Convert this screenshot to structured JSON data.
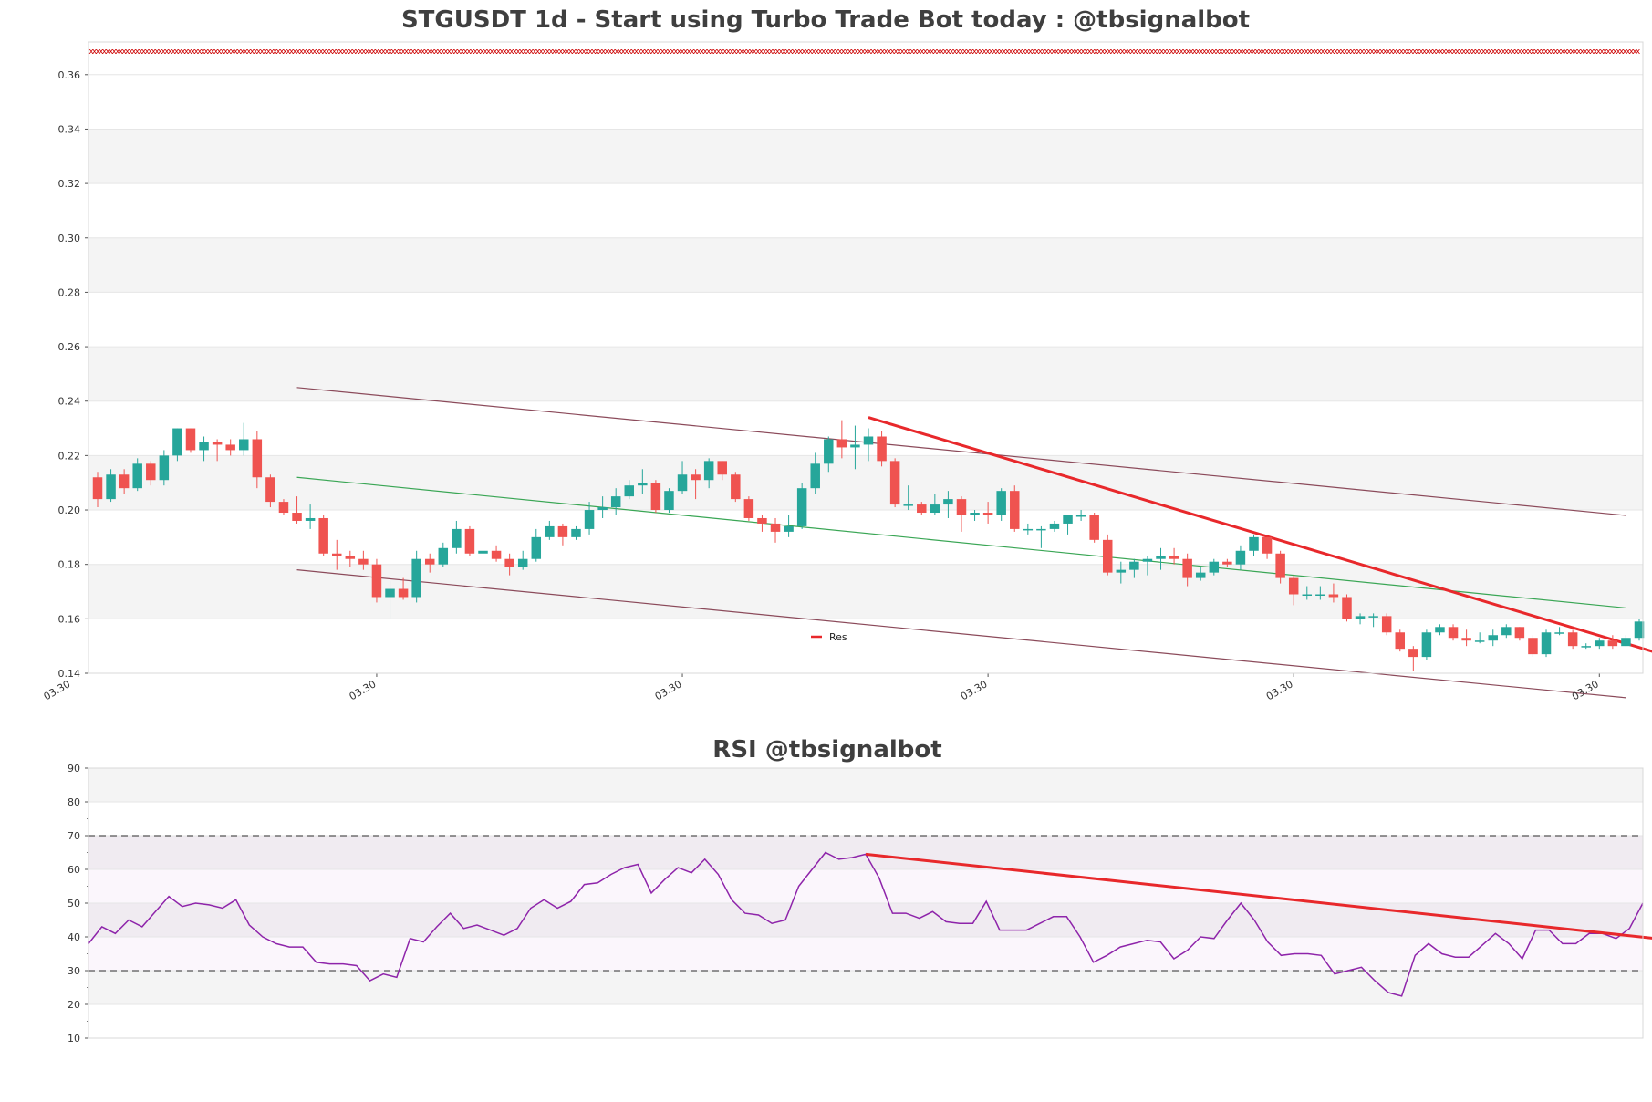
{
  "chart_data": [
    {
      "type": "candlestick",
      "title": "STGUSDT 1d - Start using Turbo Trade Bot today : @tbsignalbot",
      "ylim": [
        0.14,
        0.372
      ],
      "yticks": [
        0.14,
        0.16,
        0.18,
        0.2,
        0.22,
        0.24,
        0.26,
        0.28,
        0.3,
        0.32,
        0.34,
        0.36
      ],
      "x_tick_labels": [
        "03.30",
        "03.30",
        "03.30",
        "03.30",
        "03.30",
        "03.30"
      ],
      "x_tick_index": [
        -2,
        21,
        44,
        67,
        90,
        113
      ],
      "grid": "horizontal-bands",
      "colors": {
        "up": "#26a69a",
        "down": "#ef5350",
        "channel": "#8b4a5a",
        "mid": "#3aa655",
        "res": "#e8282b",
        "marker": "#cc0000",
        "band": "#f4f4f4"
      },
      "candles": [
        [
          0.212,
          0.204,
          0.214,
          0.201
        ],
        [
          0.204,
          0.213,
          0.215,
          0.203
        ],
        [
          0.213,
          0.208,
          0.215,
          0.206
        ],
        [
          0.208,
          0.217,
          0.219,
          0.207
        ],
        [
          0.217,
          0.211,
          0.218,
          0.209
        ],
        [
          0.211,
          0.22,
          0.222,
          0.209
        ],
        [
          0.22,
          0.23,
          0.23,
          0.218
        ],
        [
          0.23,
          0.222,
          0.23,
          0.221
        ],
        [
          0.222,
          0.225,
          0.227,
          0.218
        ],
        [
          0.225,
          0.224,
          0.226,
          0.218
        ],
        [
          0.224,
          0.222,
          0.226,
          0.22
        ],
        [
          0.222,
          0.226,
          0.232,
          0.22
        ],
        [
          0.226,
          0.212,
          0.229,
          0.208
        ],
        [
          0.212,
          0.203,
          0.213,
          0.201
        ],
        [
          0.203,
          0.199,
          0.204,
          0.198
        ],
        [
          0.199,
          0.196,
          0.205,
          0.195
        ],
        [
          0.196,
          0.197,
          0.202,
          0.193
        ],
        [
          0.197,
          0.184,
          0.198,
          0.183
        ],
        [
          0.184,
          0.183,
          0.189,
          0.178
        ],
        [
          0.183,
          0.182,
          0.185,
          0.179
        ],
        [
          0.182,
          0.18,
          0.185,
          0.178
        ],
        [
          0.18,
          0.168,
          0.182,
          0.166
        ],
        [
          0.168,
          0.171,
          0.174,
          0.16
        ],
        [
          0.171,
          0.168,
          0.175,
          0.167
        ],
        [
          0.168,
          0.182,
          0.185,
          0.166
        ],
        [
          0.182,
          0.18,
          0.184,
          0.177
        ],
        [
          0.18,
          0.186,
          0.188,
          0.179
        ],
        [
          0.186,
          0.193,
          0.196,
          0.184
        ],
        [
          0.193,
          0.184,
          0.194,
          0.183
        ],
        [
          0.184,
          0.185,
          0.187,
          0.181
        ],
        [
          0.185,
          0.182,
          0.187,
          0.181
        ],
        [
          0.182,
          0.179,
          0.184,
          0.176
        ],
        [
          0.179,
          0.182,
          0.185,
          0.178
        ],
        [
          0.182,
          0.19,
          0.193,
          0.181
        ],
        [
          0.19,
          0.194,
          0.196,
          0.189
        ],
        [
          0.194,
          0.19,
          0.195,
          0.187
        ],
        [
          0.19,
          0.193,
          0.194,
          0.189
        ],
        [
          0.193,
          0.2,
          0.203,
          0.191
        ],
        [
          0.2,
          0.201,
          0.205,
          0.197
        ],
        [
          0.201,
          0.205,
          0.208,
          0.198
        ],
        [
          0.205,
          0.209,
          0.211,
          0.204
        ],
        [
          0.209,
          0.21,
          0.215,
          0.206
        ],
        [
          0.21,
          0.2,
          0.211,
          0.199
        ],
        [
          0.2,
          0.207,
          0.208,
          0.199
        ],
        [
          0.207,
          0.213,
          0.218,
          0.206
        ],
        [
          0.213,
          0.211,
          0.215,
          0.204
        ],
        [
          0.211,
          0.218,
          0.219,
          0.208
        ],
        [
          0.218,
          0.213,
          0.218,
          0.211
        ],
        [
          0.213,
          0.204,
          0.214,
          0.203
        ],
        [
          0.204,
          0.197,
          0.205,
          0.196
        ],
        [
          0.197,
          0.195,
          0.198,
          0.192
        ],
        [
          0.195,
          0.192,
          0.197,
          0.188
        ],
        [
          0.192,
          0.194,
          0.198,
          0.19
        ],
        [
          0.194,
          0.208,
          0.21,
          0.193
        ],
        [
          0.208,
          0.217,
          0.221,
          0.206
        ],
        [
          0.217,
          0.226,
          0.227,
          0.214
        ],
        [
          0.226,
          0.223,
          0.233,
          0.219
        ],
        [
          0.223,
          0.224,
          0.231,
          0.215
        ],
        [
          0.224,
          0.227,
          0.23,
          0.218
        ],
        [
          0.227,
          0.218,
          0.229,
          0.216
        ],
        [
          0.218,
          0.202,
          0.219,
          0.201
        ],
        [
          0.202,
          0.202,
          0.209,
          0.2
        ],
        [
          0.202,
          0.199,
          0.203,
          0.198
        ],
        [
          0.199,
          0.202,
          0.206,
          0.198
        ],
        [
          0.202,
          0.204,
          0.207,
          0.197
        ],
        [
          0.204,
          0.198,
          0.205,
          0.192
        ],
        [
          0.198,
          0.199,
          0.2,
          0.196
        ],
        [
          0.199,
          0.198,
          0.203,
          0.195
        ],
        [
          0.198,
          0.207,
          0.208,
          0.196
        ],
        [
          0.207,
          0.193,
          0.209,
          0.192
        ],
        [
          0.193,
          0.193,
          0.195,
          0.191
        ],
        [
          0.193,
          0.193,
          0.194,
          0.186
        ],
        [
          0.193,
          0.195,
          0.196,
          0.192
        ],
        [
          0.195,
          0.198,
          0.198,
          0.191
        ],
        [
          0.198,
          0.198,
          0.2,
          0.196
        ],
        [
          0.198,
          0.189,
          0.199,
          0.188
        ],
        [
          0.189,
          0.177,
          0.191,
          0.176
        ],
        [
          0.177,
          0.178,
          0.181,
          0.173
        ],
        [
          0.178,
          0.181,
          0.182,
          0.175
        ],
        [
          0.181,
          0.182,
          0.183,
          0.176
        ],
        [
          0.182,
          0.183,
          0.186,
          0.178
        ],
        [
          0.183,
          0.182,
          0.186,
          0.18
        ],
        [
          0.182,
          0.175,
          0.184,
          0.172
        ],
        [
          0.175,
          0.177,
          0.179,
          0.174
        ],
        [
          0.177,
          0.181,
          0.182,
          0.176
        ],
        [
          0.181,
          0.18,
          0.182,
          0.179
        ],
        [
          0.18,
          0.185,
          0.187,
          0.178
        ],
        [
          0.185,
          0.19,
          0.191,
          0.183
        ],
        [
          0.19,
          0.184,
          0.19,
          0.182
        ],
        [
          0.184,
          0.175,
          0.185,
          0.173
        ],
        [
          0.175,
          0.169,
          0.176,
          0.165
        ],
        [
          0.169,
          0.169,
          0.172,
          0.167
        ],
        [
          0.169,
          0.169,
          0.172,
          0.167
        ],
        [
          0.169,
          0.168,
          0.173,
          0.166
        ],
        [
          0.168,
          0.16,
          0.169,
          0.159
        ],
        [
          0.16,
          0.161,
          0.162,
          0.158
        ],
        [
          0.161,
          0.161,
          0.162,
          0.157
        ],
        [
          0.161,
          0.155,
          0.162,
          0.154
        ],
        [
          0.155,
          0.149,
          0.156,
          0.148
        ],
        [
          0.149,
          0.146,
          0.15,
          0.141
        ],
        [
          0.146,
          0.155,
          0.156,
          0.145
        ],
        [
          0.155,
          0.157,
          0.158,
          0.154
        ],
        [
          0.157,
          0.153,
          0.158,
          0.152
        ],
        [
          0.153,
          0.152,
          0.156,
          0.15
        ],
        [
          0.152,
          0.152,
          0.155,
          0.151
        ],
        [
          0.152,
          0.154,
          0.156,
          0.15
        ],
        [
          0.154,
          0.157,
          0.158,
          0.153
        ],
        [
          0.157,
          0.153,
          0.157,
          0.152
        ],
        [
          0.153,
          0.147,
          0.154,
          0.146
        ],
        [
          0.147,
          0.155,
          0.156,
          0.146
        ],
        [
          0.155,
          0.155,
          0.157,
          0.154
        ],
        [
          0.155,
          0.15,
          0.156,
          0.149
        ],
        [
          0.15,
          0.15,
          0.151,
          0.149
        ],
        [
          0.15,
          0.152,
          0.153,
          0.149
        ],
        [
          0.152,
          0.15,
          0.154,
          0.149
        ],
        [
          0.15,
          0.153,
          0.154,
          0.15
        ],
        [
          0.153,
          0.159,
          0.16,
          0.152
        ]
      ],
      "lines": [
        {
          "name": "upper-channel",
          "from": [
            15,
            0.245
          ],
          "to": [
            115,
            0.198
          ]
        },
        {
          "name": "lower-channel",
          "from": [
            15,
            0.178
          ],
          "to": [
            115,
            0.131
          ]
        },
        {
          "name": "mid-channel",
          "from": [
            15,
            0.212
          ],
          "to": [
            115,
            0.164
          ]
        },
        {
          "name": "Res",
          "from": [
            58,
            0.234
          ],
          "to": [
            117,
            0.148
          ]
        }
      ],
      "legend": {
        "entries": [
          "Res"
        ],
        "placement": "lower-center"
      }
    },
    {
      "type": "line",
      "title": "RSI @tbsignalbot",
      "ylim": [
        10,
        90
      ],
      "yticks": [
        10,
        20,
        30,
        40,
        50,
        60,
        70,
        80,
        90
      ],
      "hlines": [
        30,
        70
      ],
      "colors": {
        "line": "#8e24aa",
        "res": "#e8282b",
        "hline": "#555555"
      },
      "values": [
        38.0,
        43.0,
        41.0,
        45.0,
        43.0,
        47.5,
        52.0,
        49.0,
        50.0,
        49.5,
        48.5,
        51.0,
        43.5,
        40.0,
        38.0,
        37.0,
        37.0,
        32.5,
        32.0,
        32.0,
        31.5,
        27.0,
        29.0,
        28.0,
        39.5,
        38.5,
        43.0,
        47.0,
        42.5,
        43.5,
        42.0,
        40.5,
        42.5,
        48.5,
        51.0,
        48.5,
        50.5,
        55.5,
        56.0,
        58.5,
        60.5,
        61.5,
        53.0,
        57.0,
        60.5,
        59.0,
        63.0,
        58.5,
        51.0,
        47.0,
        46.5,
        44.0,
        45.0,
        55.0,
        60.0,
        65.0,
        63.0,
        63.5,
        64.5,
        57.5,
        47.0,
        47.0,
        45.5,
        47.5,
        44.5,
        44.0,
        44.0,
        50.5,
        42.0,
        42.0,
        42.0,
        44.0,
        46.0,
        46.0,
        40.0,
        32.5,
        34.5,
        37.0,
        38.0,
        39.0,
        38.5,
        33.5,
        36.0,
        40.0,
        39.5,
        45.0,
        50.0,
        45.0,
        38.5,
        34.5,
        35.0,
        35.0,
        34.5,
        29.0,
        30.0,
        31.0,
        27.0,
        23.5,
        22.5,
        34.5,
        38.0,
        35.0,
        34.0,
        34.0,
        37.5,
        41.0,
        38.0,
        33.5,
        42.0,
        42.0,
        38.0,
        38.0,
        41.0,
        41.0,
        39.5,
        42.5,
        50.0
      ],
      "res_line": {
        "from": [
          58,
          64.5
        ],
        "to": [
          117,
          39.5
        ]
      }
    }
  ]
}
